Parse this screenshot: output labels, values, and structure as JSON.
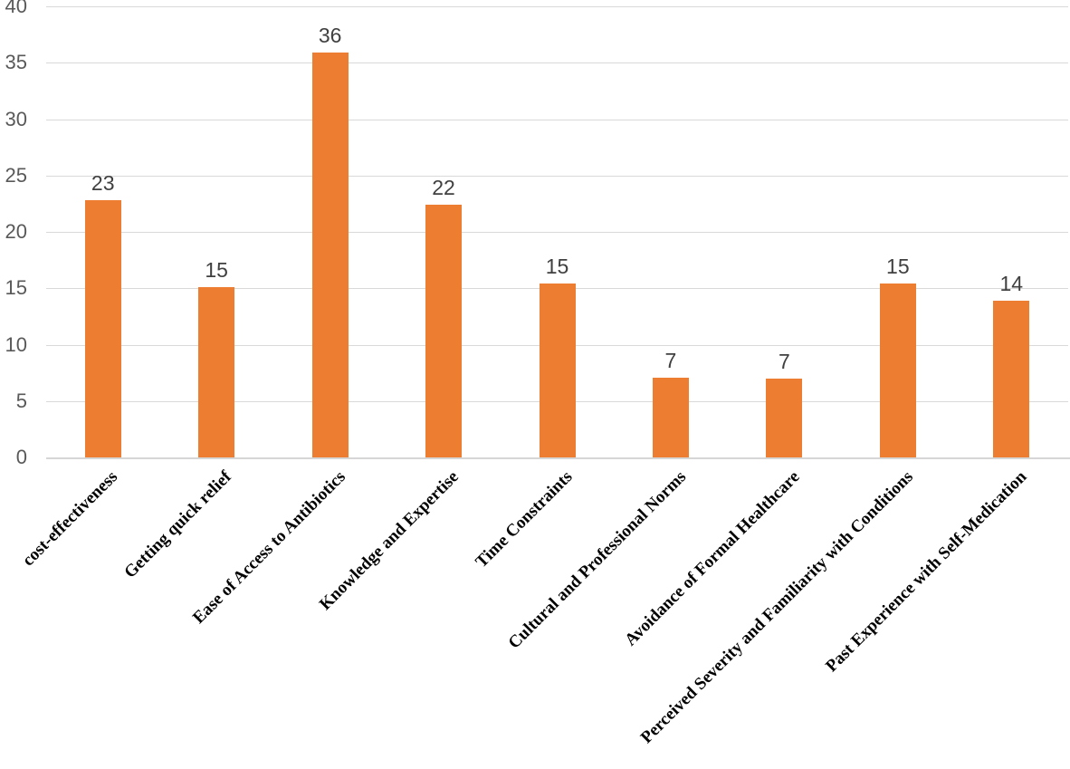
{
  "chart_data": {
    "type": "bar",
    "title": "",
    "xlabel": "",
    "ylabel": "",
    "categories": [
      "cost-effectiveness",
      "Getting quick relief",
      "Ease of Access to Antibiotics",
      "Knowledge and Expertise",
      "Time Constraints",
      "Cultural and Professional Norms",
      "Avoidance of Formal Healthcare",
      "Perceived Severity and Familiarity with Conditions",
      "Past Experience with Self-Medication"
    ],
    "values": [
      23,
      15,
      36,
      22,
      15,
      7,
      7,
      15,
      14
    ],
    "bar_heights_exact": [
      22.8,
      15.1,
      35.9,
      22.4,
      15.4,
      7.1,
      7.0,
      15.4,
      13.9
    ],
    "ylim": [
      0,
      40
    ],
    "yticks": [
      0,
      5,
      10,
      15,
      20,
      25,
      30,
      35,
      40
    ],
    "grid": true,
    "legend_position": "none",
    "colors": {
      "bar": "#ED7D31",
      "gridline": "#D9D9D9",
      "axis_line": "#D6D6D6",
      "y_tick_label": "#595959",
      "data_label": "#404040",
      "category_label": "#000000",
      "background": "#FFFFFF"
    }
  }
}
